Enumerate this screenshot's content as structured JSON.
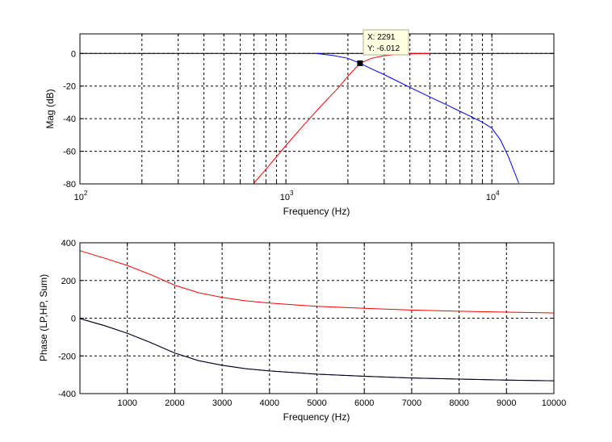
{
  "chart_data": [
    {
      "type": "line",
      "xscale": "log",
      "xlim": [
        100,
        20000
      ],
      "ylim": [
        -80,
        12
      ],
      "xlabel": "Frequency (Hz)",
      "ylabel": "Mag (dB)",
      "x_ticks": [
        100,
        1000,
        10000
      ],
      "x_tick_labels": [
        {
          "base": "10",
          "exp": "2"
        },
        {
          "base": "10",
          "exp": "3"
        },
        {
          "base": "10",
          "exp": "4"
        }
      ],
      "y_ticks": [
        -80,
        -60,
        -40,
        -20,
        0
      ],
      "y_tick_labels": [
        "-80",
        "-60",
        "-40",
        "-20",
        "0"
      ],
      "grid": true,
      "series": [
        {
          "color": "#000000",
          "x": [
            100,
            20000
          ],
          "y": [
            0,
            0
          ]
        },
        {
          "color": "#0000ff",
          "x": [
            1400,
            1700,
            2000,
            2291,
            2600,
            3000,
            3500,
            4000,
            5000,
            6000,
            7000,
            8000,
            9000,
            10000,
            11000,
            12000,
            13500
          ],
          "y": [
            0,
            -1.3,
            -3.0,
            -6.0,
            -9.4,
            -13.0,
            -17.2,
            -20.8,
            -26.7,
            -31.4,
            -35.5,
            -39.0,
            -42.2,
            -45.8,
            -53.0,
            -63.0,
            -79.5
          ]
        },
        {
          "color": "#ff0000",
          "x": [
            700,
            800,
            1000,
            1200,
            1500,
            1800,
            2000,
            2291,
            2600,
            3000,
            3500,
            4000,
            4500,
            5000
          ],
          "y": [
            -79.5,
            -71.0,
            -56.5,
            -45.0,
            -31.5,
            -21.0,
            -14.0,
            -6.0,
            -3.0,
            -1.4,
            -0.6,
            -0.2,
            -0.1,
            0
          ]
        }
      ],
      "datatip": {
        "x": 2291,
        "y": -6.012,
        "x_text": "X: 2291",
        "y_text": "Y: -6.012"
      }
    },
    {
      "type": "line",
      "xlim": [
        0,
        10000
      ],
      "ylim": [
        -400,
        400
      ],
      "xlabel": "Frequency (Hz)",
      "ylabel": "Phase (LP,HP, Sum)",
      "x_ticks": [
        1000,
        2000,
        3000,
        4000,
        5000,
        6000,
        7000,
        8000,
        9000,
        10000
      ],
      "x_tick_labels": [
        "1000",
        "2000",
        "3000",
        "4000",
        "5000",
        "6000",
        "7000",
        "8000",
        "9000",
        "10000"
      ],
      "y_ticks": [
        -400,
        -200,
        0,
        200,
        400
      ],
      "y_tick_labels": [
        "-400",
        "-200",
        "0",
        "200",
        "400"
      ],
      "grid": true,
      "series": [
        {
          "color": "#ff0000",
          "x": [
            0,
            500,
            1000,
            1500,
            2000,
            2500,
            3000,
            3500,
            4000,
            5000,
            6000,
            7000,
            8000,
            9000,
            10000
          ],
          "y": [
            358,
            320,
            280,
            230,
            175,
            135,
            110,
            92,
            80,
            63,
            52,
            43,
            37,
            32,
            28
          ]
        },
        {
          "color": "#0000ff",
          "x": [
            0,
            500,
            1000,
            1500,
            2000,
            2500,
            3000,
            3500,
            4000,
            5000,
            6000,
            7000,
            8000,
            9000,
            10000
          ],
          "y": [
            -2,
            -38,
            -80,
            -130,
            -185,
            -225,
            -250,
            -268,
            -280,
            -297,
            -308,
            -317,
            -323,
            -328,
            -332
          ]
        },
        {
          "color": "#000000",
          "x": [
            0,
            500,
            1000,
            1500,
            2000,
            2500,
            3000,
            3500,
            4000,
            5000,
            6000,
            7000,
            8000,
            9000,
            10000
          ],
          "y": [
            -2,
            -38,
            -80,
            -130,
            -185,
            -225,
            -250,
            -268,
            -280,
            -297,
            -308,
            -317,
            -323,
            -328,
            -332
          ]
        }
      ]
    }
  ]
}
